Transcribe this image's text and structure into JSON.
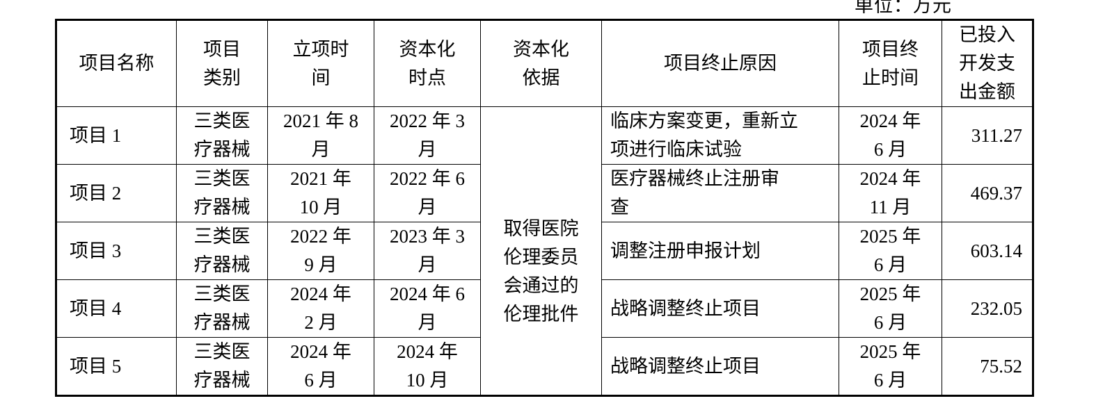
{
  "unit_label": "单位：万元",
  "headers": [
    "项目名称",
    "项目\n类别",
    "立项时\n间",
    "资本化\n时点",
    "资本化\n依据",
    "项目终止原因",
    "项目终\n止时间",
    "已投入\n开发支\n出金额"
  ],
  "capitalization_basis": [
    "取得医院",
    "伦理委员",
    "会通过的",
    "伦理批件"
  ],
  "rows": [
    {
      "name": "项目 1",
      "category": [
        "三类医",
        "疗器械"
      ],
      "start": [
        "2021 年 8",
        "月"
      ],
      "cap_time": [
        "2022 年 3",
        "月"
      ],
      "reason": [
        "临床方案变更，重新立",
        "项进行临床试验"
      ],
      "end": [
        "2024 年",
        "6 月"
      ],
      "amount": "311.27"
    },
    {
      "name": "项目 2",
      "category": [
        "三类医",
        "疗器械"
      ],
      "start": [
        "2021 年",
        "10 月"
      ],
      "cap_time": [
        "2022 年 6",
        "月"
      ],
      "reason": [
        "医疗器械终止注册审",
        "查"
      ],
      "end": [
        "2024 年",
        "11 月"
      ],
      "amount": "469.37"
    },
    {
      "name": "项目 3",
      "category": [
        "三类医",
        "疗器械"
      ],
      "start": [
        "2022 年",
        "9 月"
      ],
      "cap_time": [
        "2023 年 3",
        "月"
      ],
      "reason": [
        "调整注册申报计划"
      ],
      "end": [
        "2025 年",
        "6 月"
      ],
      "amount": "603.14"
    },
    {
      "name": "项目 4",
      "category": [
        "三类医",
        "疗器械"
      ],
      "start": [
        "2024 年",
        "2 月"
      ],
      "cap_time": [
        "2024 年 6",
        "月"
      ],
      "reason": [
        "战略调整终止项目"
      ],
      "end": [
        "2025 年",
        "6 月"
      ],
      "amount": "232.05"
    },
    {
      "name": "项目 5",
      "category": [
        "三类医",
        "疗器械"
      ],
      "start": [
        "2024 年",
        "6 月"
      ],
      "cap_time": [
        "2024 年",
        "10 月"
      ],
      "reason": [
        "战略调整终止项目"
      ],
      "end": [
        "2025 年",
        "6 月"
      ],
      "amount": "75.52"
    }
  ]
}
